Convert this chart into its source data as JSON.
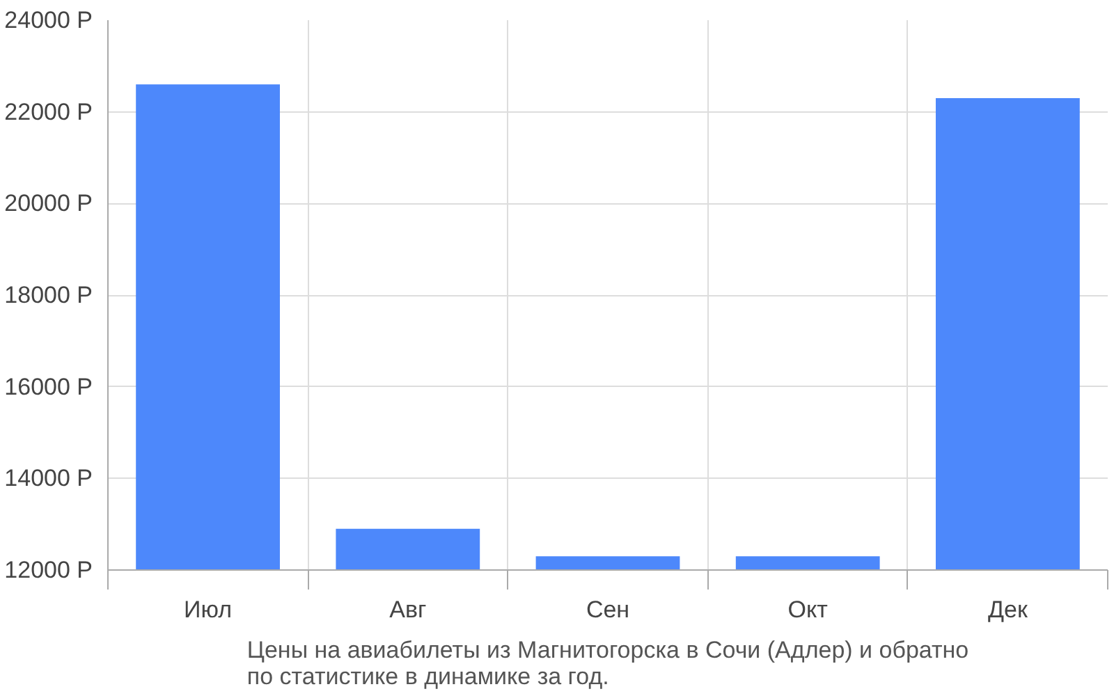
{
  "chart_data": {
    "type": "bar",
    "title": "Цены на авиабилеты из Магнитогорска в Сочи (Адлер) и обратно\nпо статистике в динамике за год.",
    "categories": [
      "Июл",
      "Авг",
      "Сен",
      "Окт",
      "Дек"
    ],
    "values": [
      22600,
      12900,
      12300,
      12300,
      22300
    ],
    "color": "#4d88fb",
    "ylim": [
      12000,
      24000
    ],
    "yticks": [
      {
        "value": 12000,
        "label": "12000 Р"
      },
      {
        "value": 14000,
        "label": "14000 Р"
      },
      {
        "value": 16000,
        "label": "16000 Р"
      },
      {
        "value": 18000,
        "label": "18000 Р"
      },
      {
        "value": 20000,
        "label": "20000 Р"
      },
      {
        "value": 22000,
        "label": "22000 Р"
      },
      {
        "value": 24000,
        "label": "24000 Р"
      }
    ],
    "grid": true
  }
}
